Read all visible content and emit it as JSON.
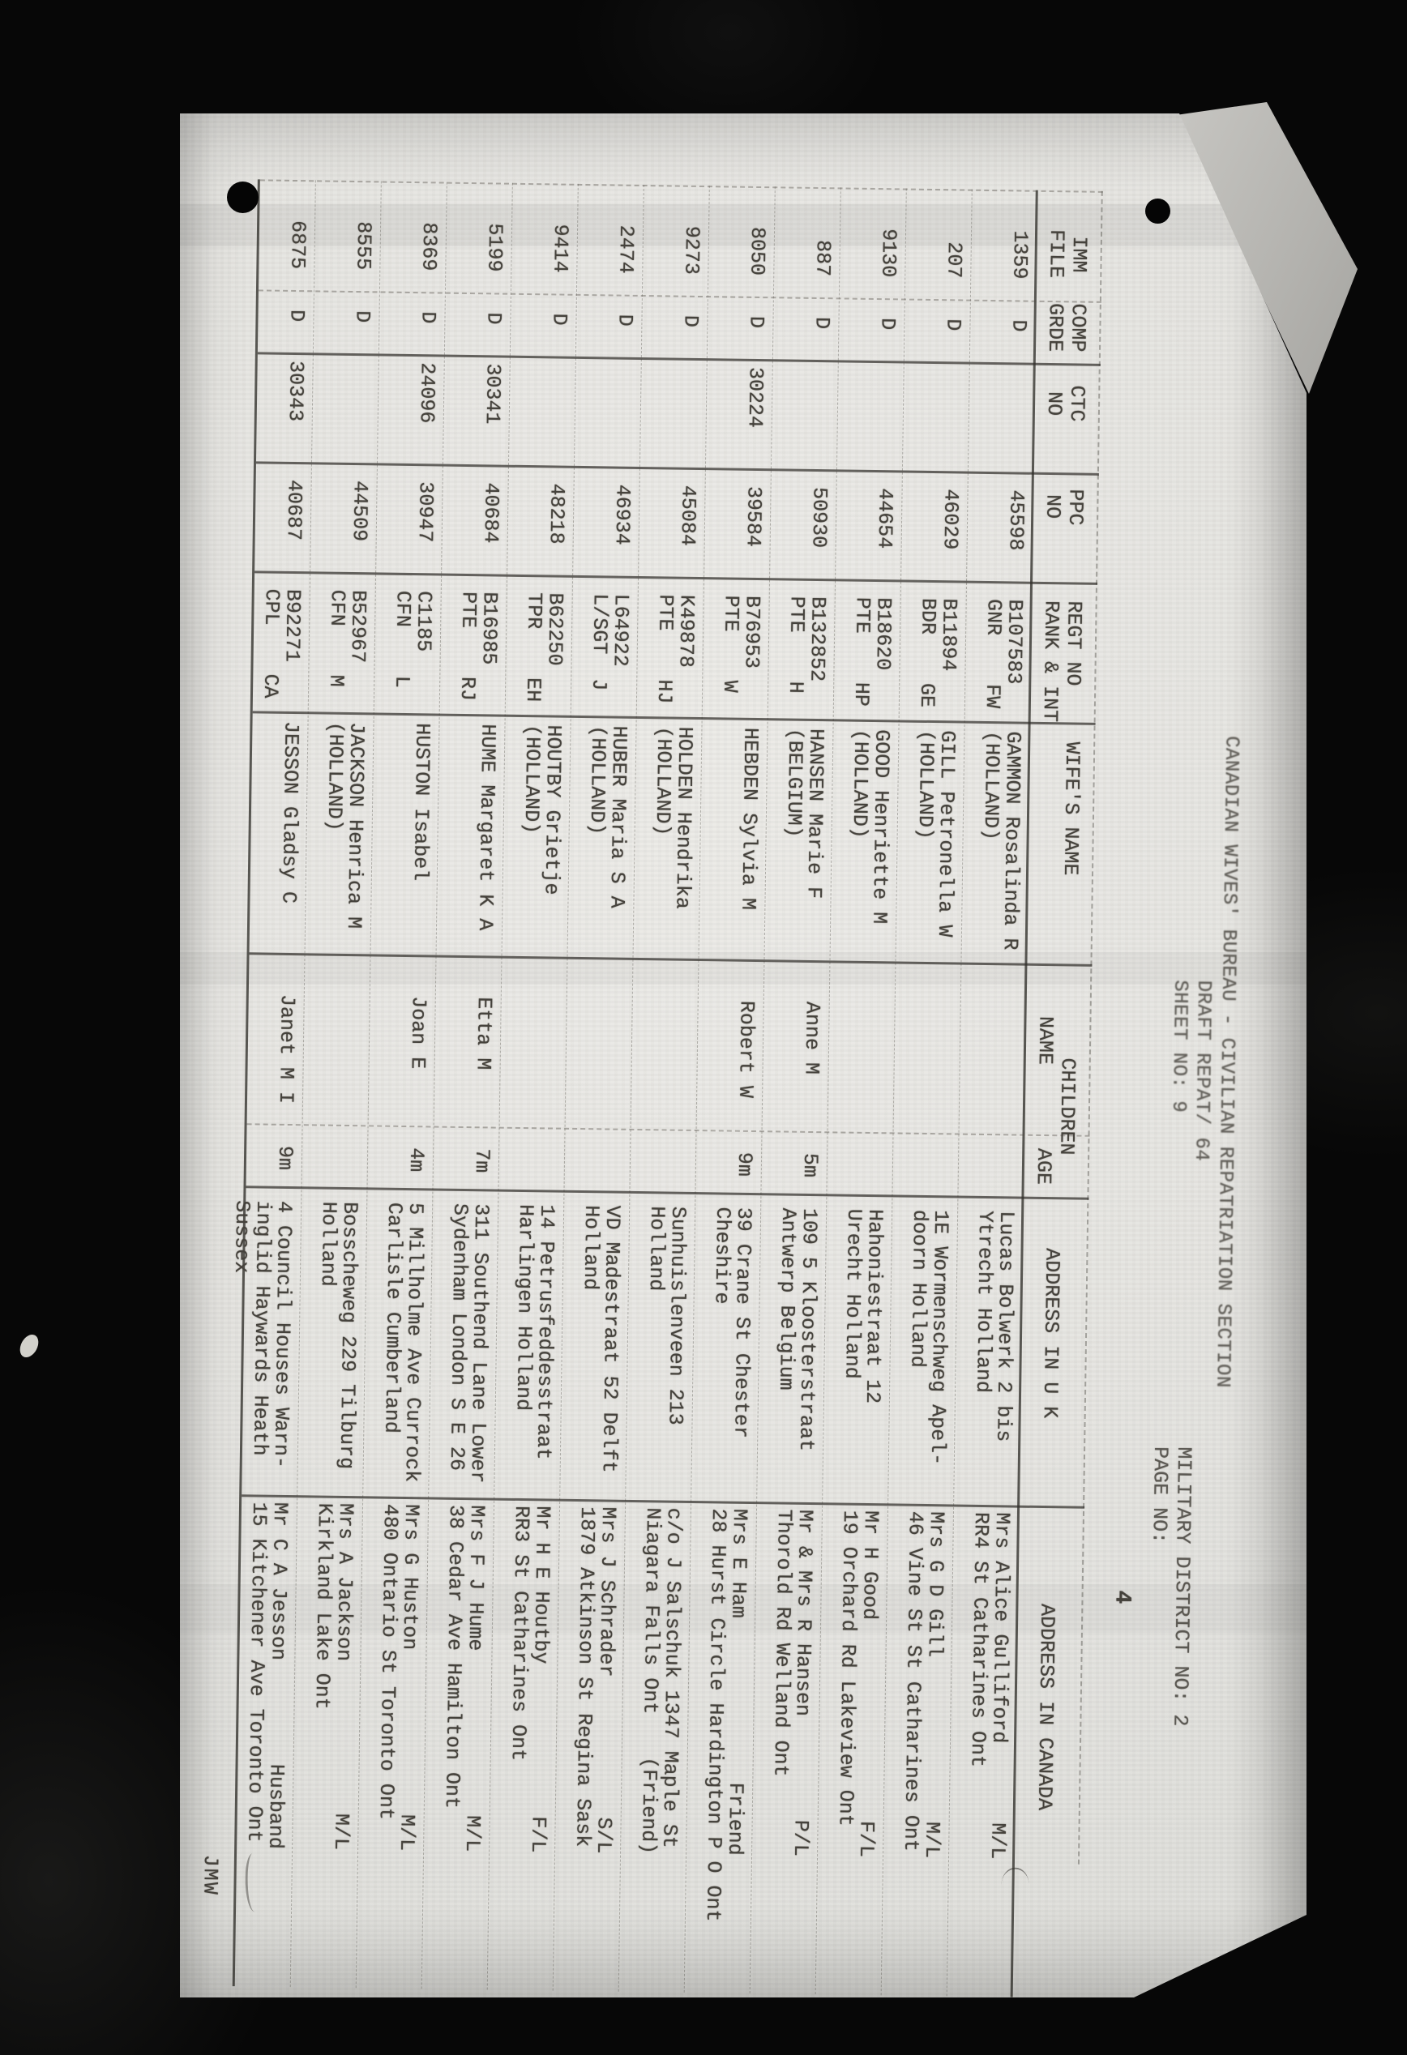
{
  "photo": {
    "background_color": "#070707",
    "paper_color": "#e6e5e1",
    "marks": [
      "punch-hole-left",
      "punch-hole-right",
      "folded-corner",
      "white-speck"
    ]
  },
  "header": {
    "title": "CANADIAN WIVES' BUREAU - CIVILIAN REPATRIATION SECTION",
    "report_line": "DRAFT REPAT/ 64",
    "sheet_line": "SHEET NO: 9",
    "district_line": "MILITARY DISTRICT NO: 2",
    "page_label": "PAGE NO:",
    "page_number": "4",
    "clerk_initials": "JMW"
  },
  "table": {
    "column_headers": {
      "imm_file": [
        "IMM",
        "FILE"
      ],
      "comp_grde": [
        "COMP",
        "GRDE"
      ],
      "ctc_no": [
        "CTC",
        "NO"
      ],
      "ppc_no": [
        "PPC",
        "NO"
      ],
      "regt": [
        "REGT NO",
        "RANK & INT"
      ],
      "wife": "WIFE'S NAME",
      "children_group": "CHILDREN",
      "children_name": "NAME",
      "children_age": "AGE",
      "address_uk": "ADDRESS IN U K",
      "address_canada": "ADDRESS IN CANADA"
    },
    "rows": [
      {
        "file": "1359",
        "grde": "D",
        "ctc": "",
        "ppc": "45598",
        "regt": "B107583",
        "rank": "GNR",
        "init": "FW",
        "wife": [
          "GAMMON Rosalinda R",
          "(HOLLAND)"
        ],
        "child": "",
        "age": "",
        "uk": [
          "Lucas Bolwerk 2 bis",
          "Ytrecht Holland"
        ],
        "canada": [
          "Mrs Alice Gulliford",
          "RR4 St Catharines Ont"
        ],
        "status": "M/L",
        "status_line": 1
      },
      {
        "file": "207",
        "grde": "D",
        "ctc": "",
        "ppc": "46029",
        "regt": "B11894",
        "rank": "BDR",
        "init": "GE",
        "wife": [
          "GILL Petronella W",
          "(HOLLAND)"
        ],
        "child": "",
        "age": "",
        "uk": [
          "1E Wormenschweg Apel-",
          "doorn Holland"
        ],
        "canada": [
          "Mrs G D Gill",
          "46 Vine St St Catharines Ont"
        ],
        "status": "M/L",
        "status_line": 1
      },
      {
        "file": "9130",
        "grde": "D",
        "ctc": "",
        "ppc": "44654",
        "regt": "B18620",
        "rank": "PTE",
        "init": "HP",
        "wife": [
          "GOOD Henriette M",
          "(HOLLAND)"
        ],
        "child": "",
        "age": "",
        "uk": [
          "Hahoniestraat 12",
          "Urecht Holland"
        ],
        "canada": [
          "Mr H Good",
          "19 Orchard Rd Lakeview Ont"
        ],
        "status": "F/L",
        "status_line": 1
      },
      {
        "file": "887",
        "grde": "D",
        "ctc": "",
        "ppc": "50930",
        "regt": "B132852",
        "rank": "PTE",
        "init": "H",
        "wife": [
          "HANSEN Marie F",
          "(BELGIUM)"
        ],
        "child": "Anne M",
        "age": "5m",
        "uk": [
          "109 5 Kloosterstraat",
          "Antwerp Belgium"
        ],
        "canada": [
          "Mr & Mrs R Hansen",
          "Thorold Rd Welland Ont"
        ],
        "status": "P/L",
        "status_line": 1
      },
      {
        "file": "8050",
        "grde": "D",
        "ctc": "30224",
        "ppc": "39584",
        "regt": "B76953",
        "rank": "PTE",
        "init": "W",
        "wife": [
          "HEBDEN Sylvia M"
        ],
        "child": "Robert W",
        "age": "9m",
        "uk": [
          "39 Crane St Chester",
          "Cheshire"
        ],
        "canada": [
          "Mrs E Ham",
          "28 Hurst Circle Hardington P O Ont"
        ],
        "status": "Friend",
        "status_line": 1
      },
      {
        "file": "9273",
        "grde": "D",
        "ctc": "",
        "ppc": "45084",
        "regt": "K49878",
        "rank": "PTE",
        "init": "HJ",
        "wife": [
          "HOLDEN Hendrika",
          "(HOLLAND)"
        ],
        "child": "",
        "age": "",
        "uk": [
          "Sunhuislenveen 213",
          "Holland"
        ],
        "canada": [
          "c/o J Salschuk 1347 Maple St",
          "Niagara Falls Ont"
        ],
        "status": "(Friend)",
        "status_line": 2
      },
      {
        "file": "2474",
        "grde": "D",
        "ctc": "",
        "ppc": "46934",
        "regt": "L64922",
        "rank": "L/SGT",
        "init": "J",
        "wife": [
          "HUBER Maria S A",
          "(HOLLAND)"
        ],
        "child": "",
        "age": "",
        "uk": [
          "VD Madestraat 52 Delft",
          "Holland"
        ],
        "canada": [
          "Mrs J Schrader",
          "1879 Atkinson St Regina Sask"
        ],
        "status": "S/L",
        "status_line": 1
      },
      {
        "file": "9414",
        "grde": "D",
        "ctc": "",
        "ppc": "48218",
        "regt": "B62250",
        "rank": "TPR",
        "init": "EH",
        "wife": [
          "HOUTBY Grietje",
          "(HOLLAND)"
        ],
        "child": "",
        "age": "",
        "uk": [
          "14 Petrusfeddesstraat",
          "Harlingen Holland"
        ],
        "canada": [
          "Mr H E Houtby",
          "RR3 St Catharines Ont"
        ],
        "status": "F/L",
        "status_line": 1
      },
      {
        "file": "5199",
        "grde": "D",
        "ctc": "30341",
        "ppc": "40684",
        "regt": "B16985",
        "rank": "PTE",
        "init": "RJ",
        "wife": [
          "HUME Margaret K A"
        ],
        "child": "Etta M",
        "age": "7m",
        "uk": [
          "311 Southend Lane Lower",
          "Sydenham London S E 26"
        ],
        "canada": [
          "Mrs F J Hume",
          "38 Cedar Ave Hamilton Ont"
        ],
        "status": "M/L",
        "status_line": 1
      },
      {
        "file": "8369",
        "grde": "D",
        "ctc": "24096",
        "ppc": "30947",
        "regt": "C1185",
        "rank": "CFN",
        "init": "L",
        "wife": [
          "HUSTON Isabel"
        ],
        "child": "Joan E",
        "age": "4m",
        "uk": [
          "5 Millholme Ave Currock",
          "Carlisle Cumberland"
        ],
        "canada": [
          "Mrs G Huston",
          "480 Ontario St Toronto Ont"
        ],
        "status": "M/L",
        "status_line": 1
      },
      {
        "file": "8555",
        "grde": "D",
        "ctc": "",
        "ppc": "44509",
        "regt": "B52967",
        "rank": "CFN",
        "init": "M",
        "wife": [
          "JACKSON Henrica M",
          "(HOLLAND)"
        ],
        "child": "",
        "age": "",
        "uk": [
          "Bosscheweg 229 Tilburg",
          "Holland"
        ],
        "canada": [
          "Mrs A Jackson",
          "Kirkland Lake Ont"
        ],
        "status": "M/L",
        "status_line": 1
      },
      {
        "file": "6875",
        "grde": "D",
        "ctc": "30343",
        "ppc": "40687",
        "regt": "B92271",
        "rank": "CPL",
        "init": "CA",
        "wife": [
          "JESSON Gladsy C"
        ],
        "child": "Janet M I",
        "age": "9m",
        "uk": [
          "4 Council Houses Warn-",
          "inglid Haywards Heath",
          "Sussex"
        ],
        "canada": [
          "Mr C A Jesson",
          "15 Kitchener Ave Toronto Ont"
        ],
        "status": "Husband",
        "status_line": 1
      }
    ]
  }
}
